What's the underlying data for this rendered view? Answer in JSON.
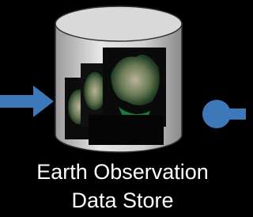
{
  "node": {
    "label_lines": [
      "Earth Observation",
      "Data Store"
    ]
  }
}
